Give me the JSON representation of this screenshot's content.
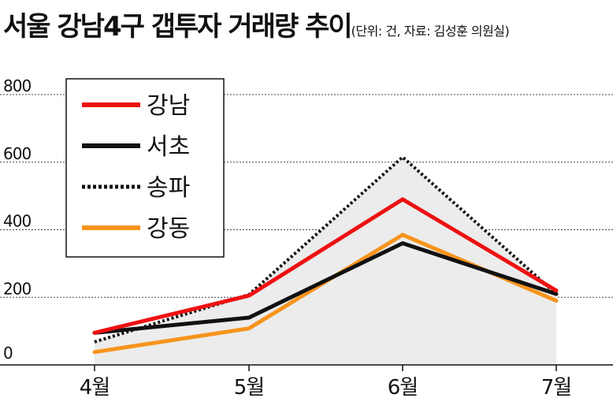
{
  "chart_data": {
    "type": "line",
    "title": "서울 강남4구 갭투자 거래량 추이",
    "subtitle": "(단위: 건, 자료: 김성훈 의원실)",
    "categories": [
      "4월",
      "5월",
      "6월",
      "7월"
    ],
    "ylim": [
      0,
      800
    ],
    "yticks": [
      "800",
      "600",
      "400",
      "200",
      "0"
    ],
    "ytick_values": [
      800,
      600,
      400,
      200,
      0
    ],
    "grid": true,
    "legend_position": "top-left",
    "shaded_series": "송파",
    "series": [
      {
        "name": "강남",
        "values": [
          95,
          205,
          490,
          220
        ],
        "color": "#ee1111",
        "style": "solid"
      },
      {
        "name": "서초",
        "values": [
          95,
          140,
          360,
          210
        ],
        "color": "#111111",
        "style": "solid"
      },
      {
        "name": "송파",
        "values": [
          68,
          208,
          615,
          210
        ],
        "color": "#111111",
        "style": "dotted"
      },
      {
        "name": "강동",
        "values": [
          38,
          108,
          385,
          190
        ],
        "color": "#f7941d",
        "style": "solid"
      }
    ]
  }
}
